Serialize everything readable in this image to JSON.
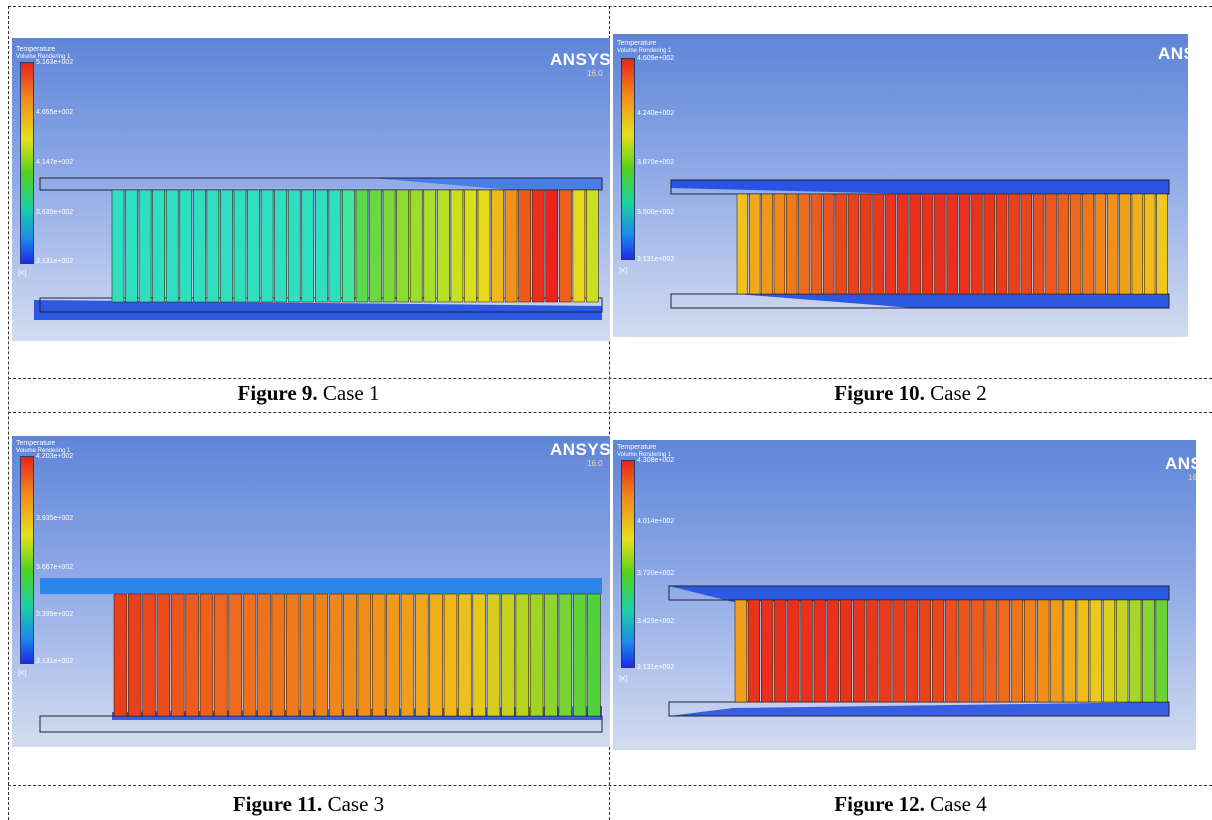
{
  "legend": {
    "title": "Temperature",
    "subtitle": "Volume Rendering 1",
    "unit": "[K]"
  },
  "brand": {
    "name": "ANSYS",
    "version": "16.0"
  },
  "colors": {
    "background_top": "#5f85d8",
    "background_bottom": "#d3dcf0",
    "channel": "#1c4ae0"
  },
  "figures": [
    {
      "label": "Figure 9.",
      "case": "Case 1",
      "legend_values": [
        "5.163e+002",
        "4.655e+002",
        "4.147e+002",
        "3.639e+002",
        "3.131e+002"
      ],
      "fins": [
        "#2fe0c0",
        "#2fe0c0",
        "#2fe0c0",
        "#2fe0c0",
        "#2fe0c0",
        "#2fe0c0",
        "#2fe0c0",
        "#2fe0c0",
        "#2fe0c0",
        "#2fe0c0",
        "#2fe0c0",
        "#2fe0c0",
        "#2fe0c0",
        "#2fe0c0",
        "#2fe0c0",
        "#2fe0c0",
        "#2fe0c0",
        "#40e8a0",
        "#5ad850",
        "#6ad840",
        "#7ada38",
        "#8adc30",
        "#9ade2c",
        "#a8e028",
        "#b6e024",
        "#c8e020",
        "#d8e01c",
        "#e8d81c",
        "#f0b81a",
        "#f0921a",
        "#ec5a1c",
        "#e8301c",
        "#e8241c",
        "#ee601a",
        "#e8d81c",
        "#c8e020"
      ]
    },
    {
      "label": "Figure 10.",
      "case": "Case 2",
      "legend_values": [
        "4.609e+002",
        "4.240e+002",
        "3.870e+002",
        "3.500e+002",
        "3.131e+002"
      ],
      "fins": [
        "#f0c020",
        "#f0a81a",
        "#f0981a",
        "#ee8a1a",
        "#ec7a1a",
        "#ea6c1c",
        "#e85e1c",
        "#e8521c",
        "#e8481c",
        "#e8421c",
        "#e83c1c",
        "#e8381c",
        "#e8341c",
        "#e8321c",
        "#e8301c",
        "#e8301c",
        "#e8301c",
        "#e8301c",
        "#e8321c",
        "#e8341c",
        "#e8381c",
        "#e83c1c",
        "#e8401c",
        "#e8461c",
        "#ea4e1c",
        "#ea561c",
        "#ec601c",
        "#ec6a1c",
        "#ee761a",
        "#ee841a",
        "#f0921a",
        "#f0a01a",
        "#f0ae1a",
        "#f0bc1c",
        "#f0c820"
      ]
    },
    {
      "label": "Figure 11.",
      "case": "Case 3",
      "legend_values": [
        "4.203e+002",
        "3.935e+002",
        "3.667e+002",
        "3.399e+002",
        "3.131e+002"
      ],
      "fins": [
        "#e8401c",
        "#e8401c",
        "#ea481c",
        "#ea4e1c",
        "#ec561c",
        "#ec5c1c",
        "#ec601c",
        "#ee661c",
        "#ee6a1c",
        "#ee6e1c",
        "#ee721a",
        "#ee761a",
        "#ee7a1a",
        "#f07e1a",
        "#f0821a",
        "#f0861a",
        "#f08a1a",
        "#f08e1a",
        "#f0921a",
        "#f0981a",
        "#f09e1a",
        "#f0a61a",
        "#f0ae1a",
        "#f0b61a",
        "#ecc01c",
        "#e4c81c",
        "#d8cc1c",
        "#c8d01e",
        "#b4d420",
        "#a0d424",
        "#8cd42a",
        "#78d430",
        "#60d236",
        "#52d23a"
      ]
    },
    {
      "label": "Figure 12.",
      "case": "Case 4",
      "legend_values": [
        "4.308e+002",
        "4.014e+002",
        "3.720e+002",
        "3.425e+002",
        "3.131e+002"
      ],
      "fins": [
        "#f0a01a",
        "#e8341c",
        "#e8301c",
        "#e8301c",
        "#e8301c",
        "#e8301c",
        "#e8301c",
        "#e8321c",
        "#e8341c",
        "#e8361c",
        "#e8381c",
        "#e83a1c",
        "#e83c1c",
        "#e8401c",
        "#e8441c",
        "#ea481c",
        "#ea4e1c",
        "#ea541c",
        "#ec5a1c",
        "#ec621c",
        "#ee6a1c",
        "#ee741a",
        "#f0801a",
        "#f08e1a",
        "#f09c1a",
        "#f0ac1a",
        "#f0bc1c",
        "#ecc81c",
        "#dcd01e",
        "#c4d422",
        "#a8d628",
        "#88d430",
        "#6cd238"
      ]
    }
  ]
}
